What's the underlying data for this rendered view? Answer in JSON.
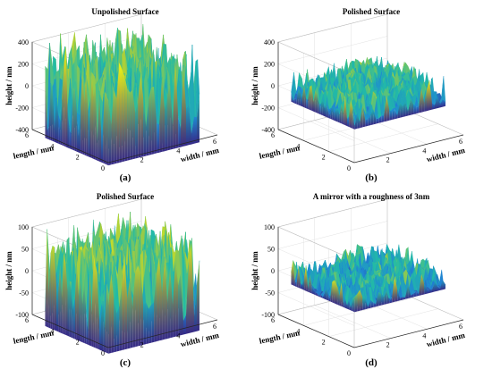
{
  "chart_data": [
    {
      "type": "surface",
      "title": "Unpolished Surface",
      "panel_label": "(a)",
      "xlabel": "width / mm",
      "ylabel": "length / mm",
      "zlabel": "height / nm",
      "xlim": [
        0,
        6
      ],
      "ylim": [
        0,
        6
      ],
      "zlim": [
        -400,
        400
      ],
      "x_ticks": [
        "2",
        "4",
        "6"
      ],
      "y_ticks": [
        "0",
        "2",
        "4",
        "6"
      ],
      "z_ticks": [
        "400",
        "200",
        "0",
        "-200",
        "-400"
      ],
      "surface_extent_mm": [
        5,
        5
      ],
      "z_range": [
        -430,
        500
      ],
      "z_baseline": 0,
      "colormap": [
        "#352a87",
        "#1f86d4",
        "#22bba6",
        "#a7cd3c",
        "#f9fb0e"
      ]
    },
    {
      "type": "surface",
      "title": "Polished Surface",
      "panel_label": "(b)",
      "xlabel": "width / mm",
      "ylabel": "length / mm",
      "zlabel": "height / nm",
      "xlim": [
        0,
        6
      ],
      "ylim": [
        0,
        6
      ],
      "zlim": [
        -400,
        400
      ],
      "x_ticks": [
        "2",
        "4",
        "6"
      ],
      "y_ticks": [
        "0",
        "2",
        "4",
        "6"
      ],
      "z_ticks": [
        "400",
        "200",
        "0",
        "-200",
        "-400"
      ],
      "surface_extent_mm": [
        5,
        5
      ],
      "z_range": [
        -100,
        190
      ],
      "z_baseline": 0,
      "colormap": [
        "#352a87",
        "#1f86d4",
        "#22bba6",
        "#a7cd3c",
        "#f9fb0e"
      ]
    },
    {
      "type": "surface",
      "title": "Polished Surface",
      "panel_label": "(c)",
      "xlabel": "width / mm",
      "ylabel": "length / mm",
      "zlabel": "height / nm",
      "xlim": [
        0,
        6
      ],
      "ylim": [
        0,
        6
      ],
      "zlim": [
        -100,
        100
      ],
      "x_ticks": [
        "2",
        "4",
        "6"
      ],
      "y_ticks": [
        "0",
        "2",
        "4",
        "6"
      ],
      "z_ticks": [
        "100",
        "50",
        "0",
        "-50",
        "-100"
      ],
      "surface_extent_mm": [
        5,
        5
      ],
      "z_range": [
        -115,
        115
      ],
      "z_baseline": 0,
      "colormap": [
        "#352a87",
        "#1f86d4",
        "#22bba6",
        "#a7cd3c",
        "#f9fb0e"
      ]
    },
    {
      "type": "surface",
      "title": "A mirror with a roughness of 3nm",
      "panel_label": "(d)",
      "xlabel": "width / mm",
      "ylabel": "length / mm",
      "zlabel": "height / nm",
      "xlim": [
        0,
        6
      ],
      "ylim": [
        0,
        6
      ],
      "zlim": [
        -100,
        100
      ],
      "x_ticks": [
        "2",
        "4",
        "6"
      ],
      "y_ticks": [
        "0",
        "2",
        "4",
        "6"
      ],
      "z_ticks": [
        "100",
        "50",
        "0",
        "-50",
        "-100"
      ],
      "surface_extent_mm": [
        5,
        5
      ],
      "z_range": [
        -20,
        40
      ],
      "z_baseline": -8,
      "colormap": [
        "#352a87",
        "#1f86d4",
        "#22bba6",
        "#a7cd3c",
        "#f9fb0e"
      ]
    }
  ]
}
